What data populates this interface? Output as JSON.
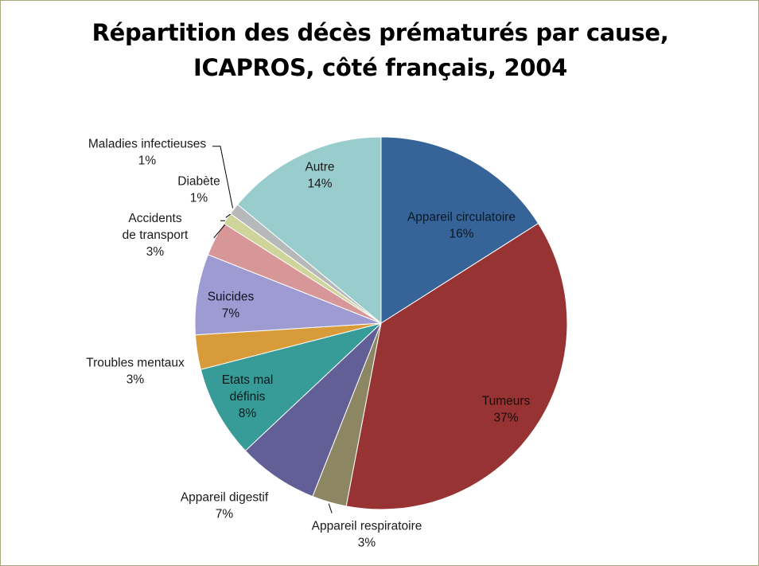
{
  "chart_data": {
    "type": "pie",
    "title_lines": [
      "Répartition des décès prématurés par cause,",
      "ICAPROS, côté français, 2004"
    ],
    "unit": "%",
    "slices": [
      {
        "label": "Appareil circulatoire",
        "value": 16,
        "color": "#366498"
      },
      {
        "label": "Tumeurs",
        "value": 37,
        "color": "#983334"
      },
      {
        "label": "Appareil respiratoire",
        "value": 3,
        "color": "#8c8762"
      },
      {
        "label": "Appareil digestif",
        "value": 7,
        "color": "#625f97"
      },
      {
        "label": "Etats mal définis",
        "value": 8,
        "color": "#379b98"
      },
      {
        "label": "Troubles mentaux",
        "value": 3,
        "color": "#d89b39"
      },
      {
        "label": "Suicides",
        "value": 7,
        "color": "#9d9bd1"
      },
      {
        "label": "Accidents de transport",
        "value": 3,
        "color": "#d79697"
      },
      {
        "label": "Diabète",
        "value": 1,
        "color": "#cfd49a"
      },
      {
        "label": "Maladies infectieuses",
        "value": 1,
        "color": "#b7b8b9"
      },
      {
        "label": "Autre",
        "value": 14,
        "color": "#99cccc"
      }
    ],
    "legend": "none",
    "data_labels": "category and percentage"
  }
}
